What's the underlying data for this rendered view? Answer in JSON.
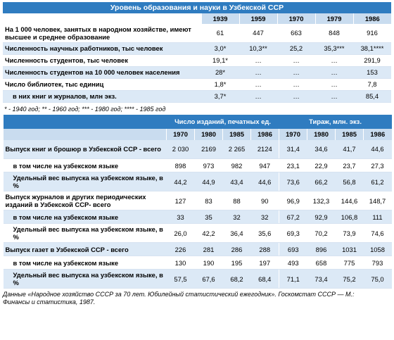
{
  "table1": {
    "title": "Уровень образования и науки в Узбекской ССР",
    "years": [
      "1939",
      "1959",
      "1970",
      "1979",
      "1986"
    ],
    "rows": [
      {
        "label": "На 1 000 человек, занятых в народном хозяйстве, имеют высшее и среднее образование",
        "values": [
          "61",
          "447",
          "663",
          "848",
          "916"
        ]
      },
      {
        "label": "Численность научных работников, тыс человек",
        "values": [
          "3,0*",
          "10,3**",
          "25,2",
          "35,3***",
          "38,1****"
        ]
      },
      {
        "label": "Численность студентов, тыс человек",
        "values": [
          "19,1*",
          "…",
          "…",
          "…",
          "291,9"
        ]
      },
      {
        "label": "Численность студентов на 10 000 человек населения",
        "values": [
          "28*",
          "…",
          "…",
          "…",
          "153"
        ]
      },
      {
        "label": "Число библиотек, тыс единиц",
        "values": [
          "1,8*",
          "…",
          "…",
          "…",
          "7,8"
        ]
      },
      {
        "label": "в них книг и журналов, млн экз.",
        "values": [
          "3,7*",
          "…",
          "…",
          "…",
          "85,4"
        ]
      }
    ],
    "note": "* - 1940 год; ** - 1960 год; *** - 1980 год; **** - 1985 год"
  },
  "table2": {
    "group1": "Число изданий, печатных ед.",
    "group2": "Тираж, млн. экз.",
    "years": [
      "1970",
      "1980",
      "1985",
      "1986",
      "1970",
      "1980",
      "1985",
      "1986"
    ],
    "rows": [
      {
        "label": "Выпуск книг и брошюр в Узбекской ССР - всего",
        "values": [
          "2 030",
          "2169",
          "2 265",
          "2124",
          "31,4",
          "34,6",
          "41,7",
          "44,6"
        ]
      },
      {
        "label": "в том числе на узбекском языке",
        "values": [
          "898",
          "973",
          "982",
          "947",
          "23,1",
          "22,9",
          "23,7",
          "27,3"
        ]
      },
      {
        "label": "Удельный вес выпуска на узбекском языке, в %",
        "values": [
          "44,2",
          "44,9",
          "43,4",
          "44,6",
          "73,6",
          "66,2",
          "56,8",
          "61,2"
        ]
      },
      {
        "label": "Выпуск журналов и других периодических изданий в Узбекской ССР- всего",
        "values": [
          "127",
          "83",
          "88",
          "90",
          "96,9",
          "132,3",
          "144,6",
          "148,7"
        ]
      },
      {
        "label": "в том числе на узбекском языке",
        "values": [
          "33",
          "35",
          "32",
          "32",
          "67,2",
          "92,9",
          "106,8",
          "111"
        ]
      },
      {
        "label": "Удельный вес выпуска на узбекском языке, в %",
        "values": [
          "26,0",
          "42,2",
          "36,4",
          "35,6",
          "69,3",
          "70,2",
          "73,9",
          "74,6"
        ]
      },
      {
        "label": "Выпуск газет в Узбекской ССР - всего",
        "values": [
          "226",
          "281",
          "286",
          "288",
          "693",
          "896",
          "1031",
          "1058"
        ]
      },
      {
        "label": "в том числе на узбекском языке",
        "values": [
          "130",
          "190",
          "195",
          "197",
          "493",
          "658",
          "775",
          "793"
        ]
      },
      {
        "label": "Удельный вес выпуска на узбекском языке, в %",
        "values": [
          "57,5",
          "67,6",
          "68,2",
          "68,4",
          "71,1",
          "73,4",
          "75,2",
          "75,0"
        ]
      }
    ]
  },
  "source": "Данные «Народное хозяйство СССР за 70 лет. Юбилейный статистический ежегодник». Госкомстат СССР — М.: Финансы и статистика, 1987."
}
